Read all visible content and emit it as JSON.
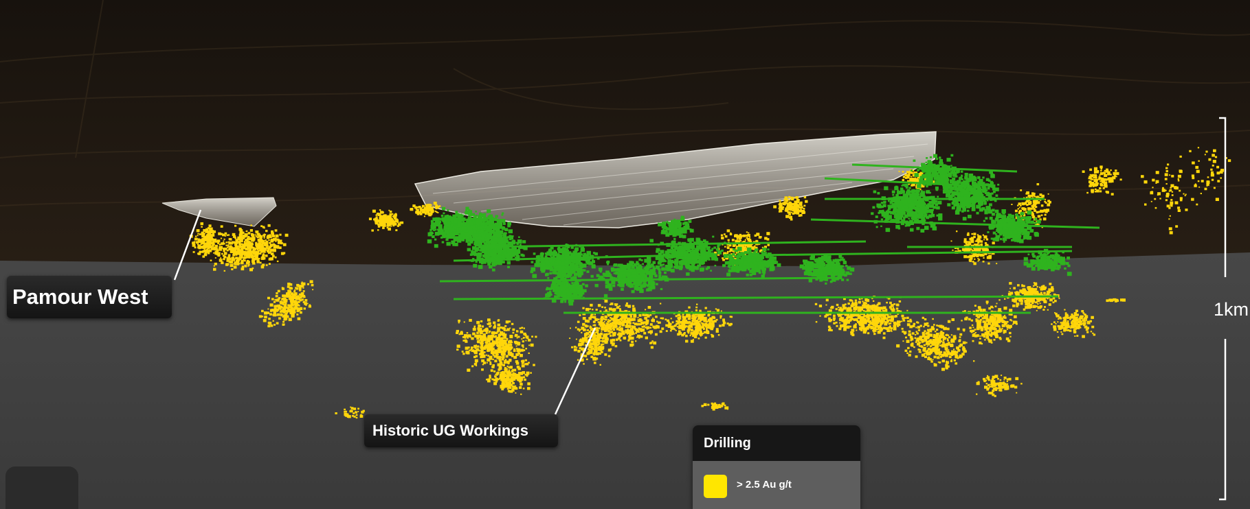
{
  "labels": {
    "pamour_west": "Pamour West",
    "historic_workings": "Historic UG Workings"
  },
  "legend": {
    "title": "Drilling",
    "items": [
      {
        "label": "> 2.5 Au g/t",
        "color": "#ffe600"
      }
    ]
  },
  "scale_bar": {
    "label": "1km"
  },
  "colors": {
    "sky_dark": "#1c150e",
    "ground_grey": "#464646",
    "drill_high_grade": "#ffd60a",
    "ug_workings": "#2fb31e",
    "open_pit_shell": "#c8c6bf"
  }
}
